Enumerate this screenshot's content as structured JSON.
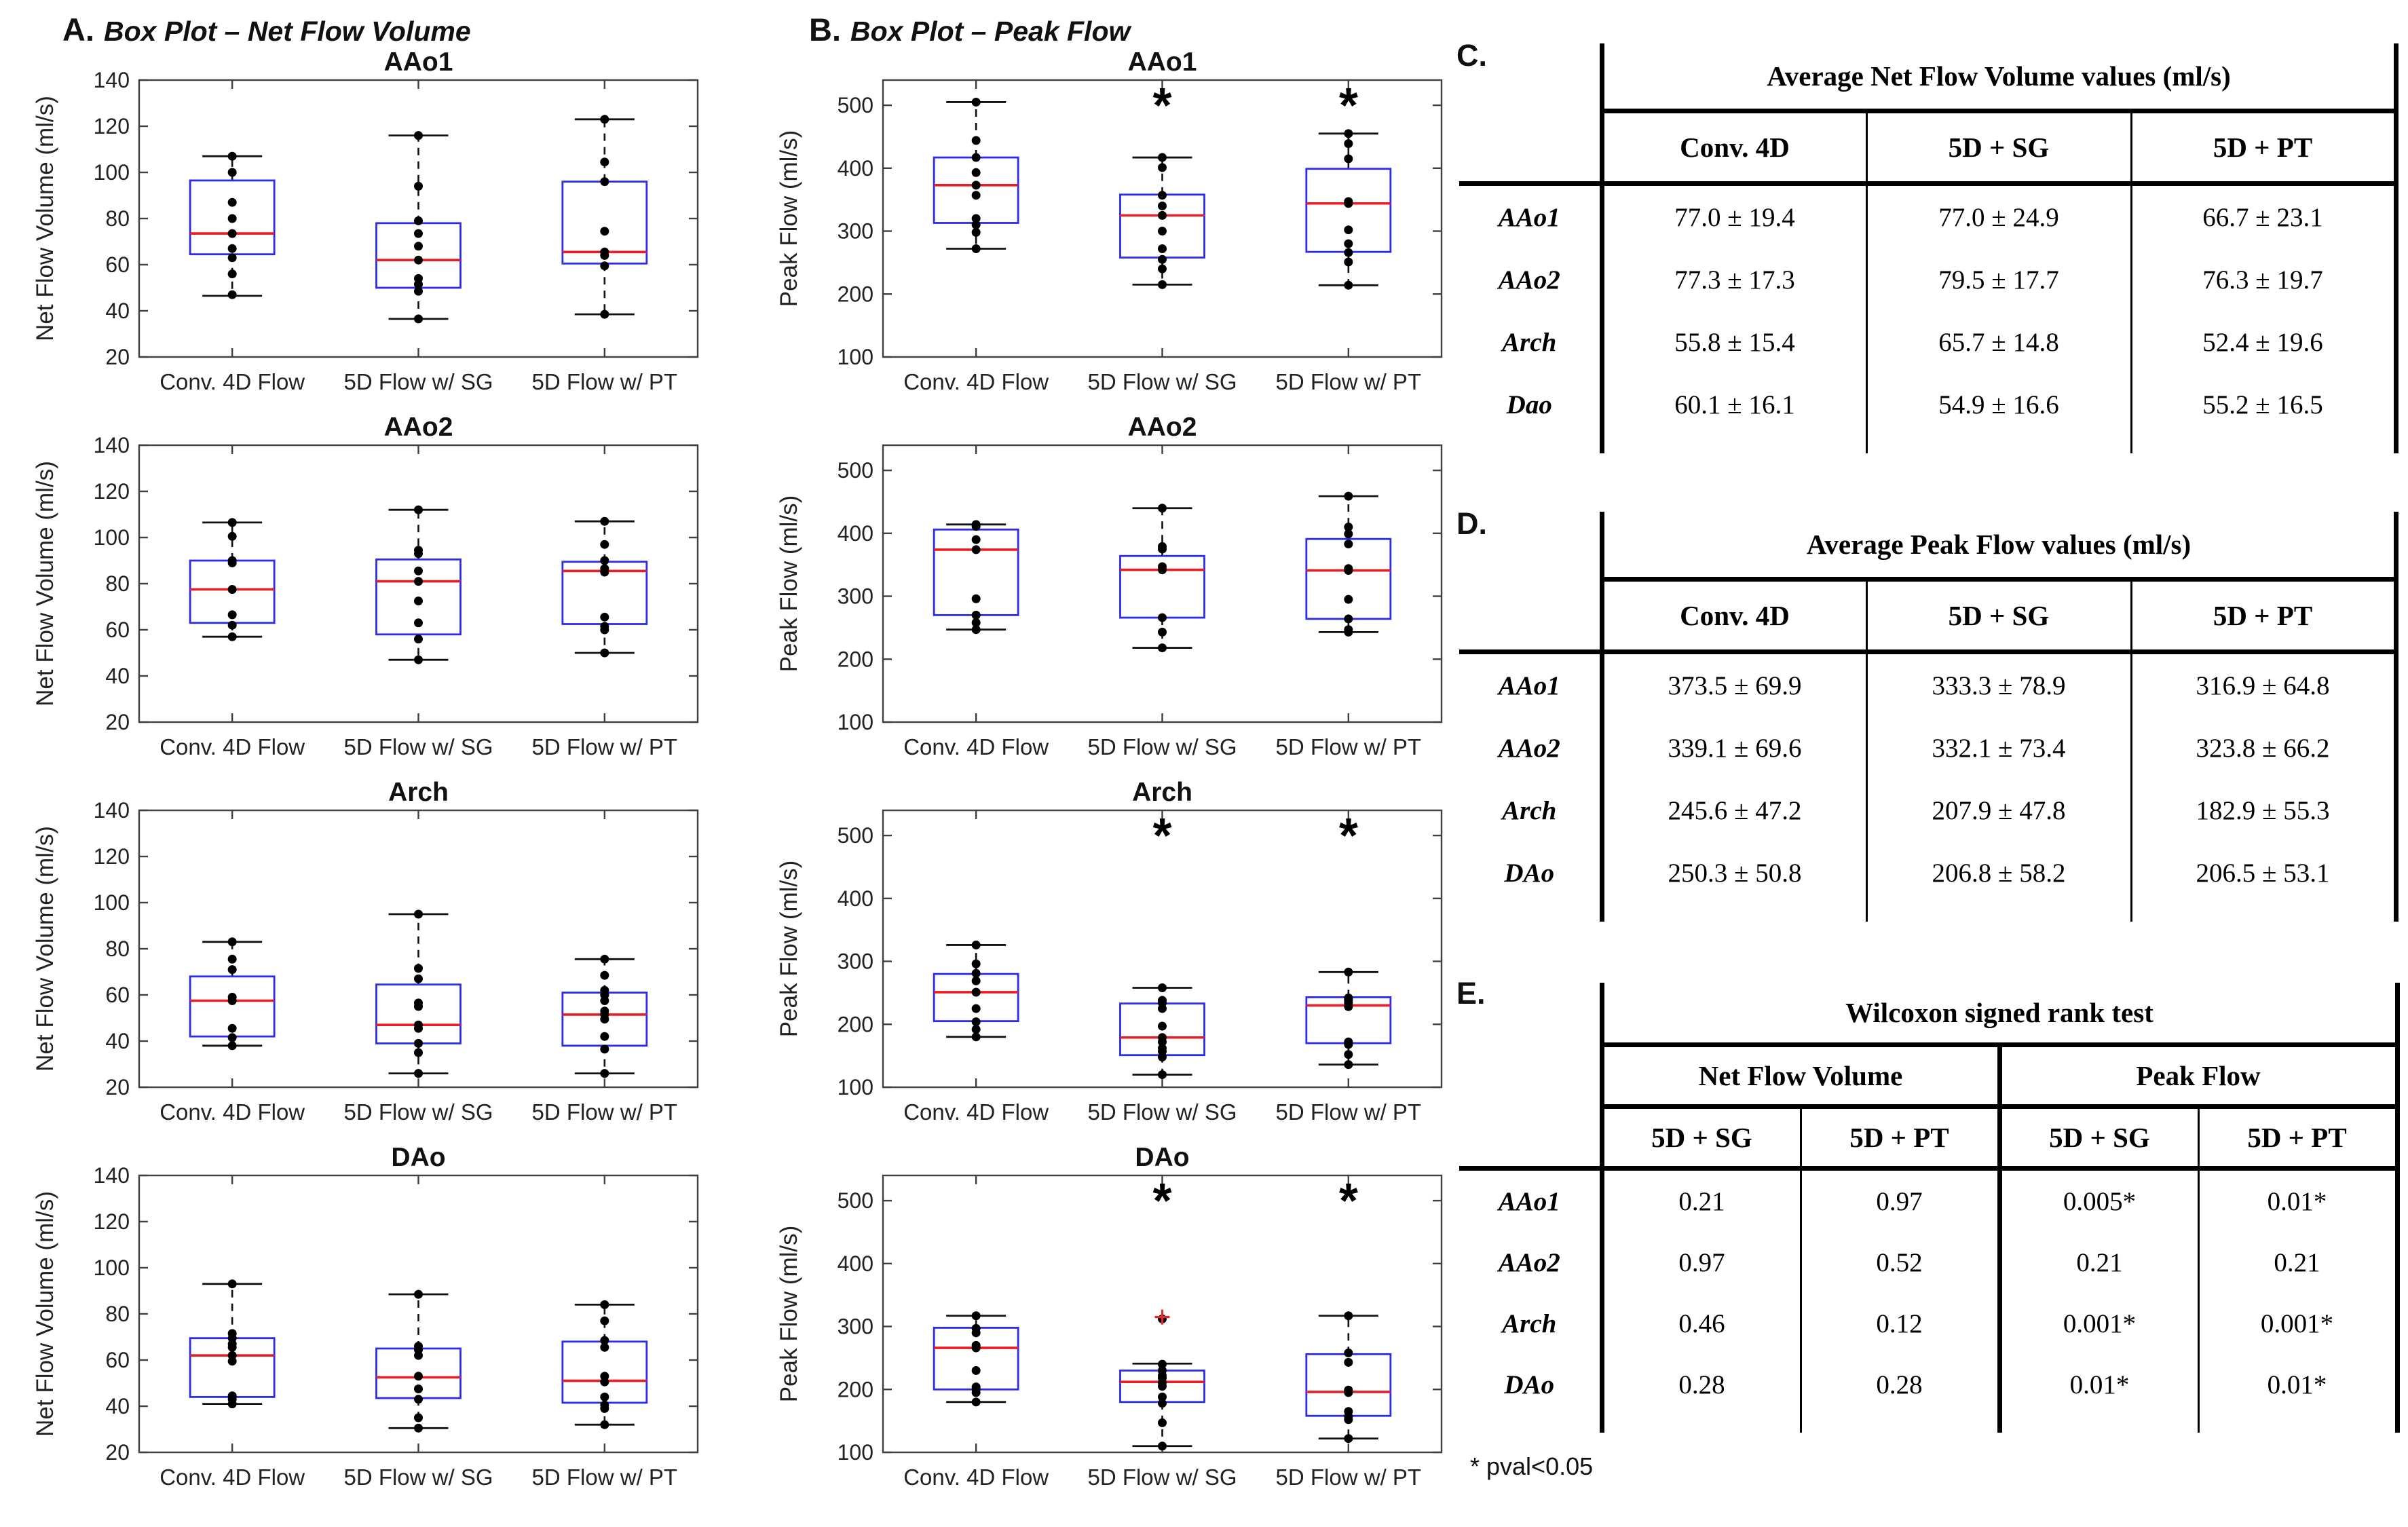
{
  "panels": {
    "A": {
      "prefix": "A.",
      "title": "Box Plot – Net Flow Volume"
    },
    "B": {
      "prefix": "B.",
      "title": "Box Plot – Peak Flow"
    },
    "C": {
      "prefix": "C."
    },
    "D": {
      "prefix": "D."
    },
    "E": {
      "prefix": "E."
    }
  },
  "colors": {
    "box": "#2b2bef",
    "median": "#ec1c24",
    "point": "#000000",
    "outlier": "#e8262a"
  },
  "chart_data": [
    {
      "panel": "A",
      "type": "box",
      "title": "AAo1",
      "ylabel": "Net Flow Volume (ml/s)",
      "ylim": [
        20,
        140
      ],
      "yticks": [
        20,
        40,
        60,
        80,
        100,
        120,
        140
      ],
      "categories": [
        "Conv. 4D Flow",
        "5D Flow w/ SG",
        "5D Flow w/ PT"
      ],
      "boxes": [
        {
          "whislo": 46.5,
          "q1": 64.5,
          "med": 73.5,
          "q3": 96.5,
          "whishi": 107,
          "sig": false,
          "points": [
            47,
            56,
            63,
            67,
            73.5,
            80,
            87,
            100,
            107
          ]
        },
        {
          "whislo": 36.5,
          "q1": 50,
          "med": 62,
          "q3": 78,
          "whishi": 116,
          "sig": false,
          "points": [
            36.5,
            48.5,
            51.5,
            54,
            62,
            68,
            73.5,
            79,
            94,
            116
          ]
        },
        {
          "whislo": 38.5,
          "q1": 60.5,
          "med": 65.5,
          "q3": 96,
          "whishi": 123,
          "sig": false,
          "points": [
            38.5,
            59.5,
            64,
            65.5,
            74.5,
            96,
            104.5,
            123
          ]
        }
      ]
    },
    {
      "panel": "A",
      "type": "box",
      "title": "AAo2",
      "ylabel": "Net Flow Volume (ml/s)",
      "ylim": [
        20,
        140
      ],
      "yticks": [
        20,
        40,
        60,
        80,
        100,
        120,
        140
      ],
      "categories": [
        "Conv. 4D Flow",
        "5D Flow w/ SG",
        "5D Flow w/ PT"
      ],
      "boxes": [
        {
          "whislo": 57,
          "q1": 63,
          "med": 77.5,
          "q3": 90,
          "whishi": 106.5,
          "sig": false,
          "points": [
            57,
            62,
            66.5,
            77.5,
            89,
            90,
            100.5,
            106.5
          ]
        },
        {
          "whislo": 47,
          "q1": 58,
          "med": 81,
          "q3": 90.5,
          "whishi": 112,
          "sig": false,
          "points": [
            47,
            56,
            63,
            72.5,
            81,
            85.5,
            93,
            94.5,
            112
          ]
        },
        {
          "whislo": 50,
          "q1": 62.5,
          "med": 85.5,
          "q3": 89.5,
          "whishi": 107,
          "sig": false,
          "points": [
            50,
            60,
            61.5,
            65.5,
            85,
            86.5,
            90,
            97,
            107
          ]
        }
      ]
    },
    {
      "panel": "A",
      "type": "box",
      "title": "Arch",
      "ylabel": "Net Flow Volume (ml/s)",
      "ylim": [
        20,
        140
      ],
      "yticks": [
        20,
        40,
        60,
        80,
        100,
        120,
        140
      ],
      "categories": [
        "Conv. 4D Flow",
        "5D Flow w/ SG",
        "5D Flow w/ PT"
      ],
      "boxes": [
        {
          "whislo": 38,
          "q1": 42,
          "med": 57.5,
          "q3": 68,
          "whishi": 83,
          "sig": false,
          "points": [
            38,
            41.5,
            45.5,
            57.5,
            59,
            71,
            75.5,
            83
          ]
        },
        {
          "whislo": 26,
          "q1": 39,
          "med": 47,
          "q3": 64.5,
          "whishi": 95,
          "sig": false,
          "points": [
            26,
            35,
            39,
            45.5,
            47,
            55,
            56.5,
            67,
            71.5,
            95
          ]
        },
        {
          "whislo": 26,
          "q1": 38,
          "med": 51.5,
          "q3": 61,
          "whishi": 75.5,
          "sig": false,
          "points": [
            26,
            36.5,
            42,
            49.5,
            51.5,
            53,
            57.5,
            60,
            62,
            68.5,
            75.5
          ]
        }
      ]
    },
    {
      "panel": "A",
      "type": "box",
      "title": "DAo",
      "ylabel": "Net Flow Volume (ml/s)",
      "ylim": [
        20,
        140
      ],
      "yticks": [
        20,
        40,
        60,
        80,
        100,
        120,
        140
      ],
      "categories": [
        "Conv. 4D Flow",
        "5D Flow w/ SG",
        "5D Flow w/ PT"
      ],
      "boxes": [
        {
          "whislo": 41,
          "q1": 44,
          "med": 62,
          "q3": 69.5,
          "whishi": 93,
          "sig": false,
          "points": [
            41,
            43,
            44.5,
            59.5,
            62,
            65.5,
            67,
            69.5,
            71.5,
            93
          ]
        },
        {
          "whislo": 30.5,
          "q1": 43.5,
          "med": 52.5,
          "q3": 65,
          "whishi": 88.5,
          "sig": false,
          "points": [
            30.5,
            35,
            43,
            47.5,
            53,
            62,
            64.5,
            66,
            88.5
          ]
        },
        {
          "whislo": 32,
          "q1": 41.5,
          "med": 51,
          "q3": 68,
          "whishi": 84,
          "sig": false,
          "points": [
            32,
            39,
            40.5,
            44,
            50.5,
            53,
            65.5,
            68.5,
            77,
            84
          ]
        }
      ]
    },
    {
      "panel": "B",
      "type": "box",
      "title": "AAo1",
      "ylabel": "Peak Flow (ml/s)",
      "ylim": [
        100,
        540
      ],
      "yticks": [
        100,
        200,
        300,
        400,
        500
      ],
      "categories": [
        "Conv. 4D Flow",
        "5D Flow w/ SG",
        "5D Flow w/ PT"
      ],
      "boxes": [
        {
          "whislo": 272,
          "q1": 313,
          "med": 373,
          "q3": 417,
          "whishi": 505,
          "sig": false,
          "points": [
            272,
            298,
            310,
            320,
            357,
            373,
            393,
            417,
            444,
            505
          ]
        },
        {
          "whislo": 215,
          "q1": 258,
          "med": 325,
          "q3": 358,
          "whishi": 417,
          "sig": true,
          "points": [
            215,
            240,
            255,
            272,
            300,
            325,
            340,
            357,
            401,
            417
          ]
        },
        {
          "whislo": 214,
          "q1": 267,
          "med": 344,
          "q3": 399,
          "whishi": 455,
          "sig": true,
          "points": [
            214,
            251,
            266,
            280,
            302,
            344,
            347,
            415,
            439,
            455
          ]
        }
      ]
    },
    {
      "panel": "B",
      "type": "box",
      "title": "AAo2",
      "ylabel": "Peak Flow (ml/s)",
      "ylim": [
        100,
        540
      ],
      "yticks": [
        100,
        200,
        300,
        400,
        500
      ],
      "categories": [
        "Conv. 4D Flow",
        "5D Flow w/ SG",
        "5D Flow w/ PT"
      ],
      "boxes": [
        {
          "whislo": 247,
          "q1": 270,
          "med": 374,
          "q3": 406,
          "whishi": 414,
          "sig": false,
          "points": [
            247,
            258,
            270,
            296,
            374,
            390,
            411,
            414
          ]
        },
        {
          "whislo": 218,
          "q1": 266,
          "med": 342,
          "q3": 364,
          "whishi": 440,
          "sig": false,
          "points": [
            218,
            243,
            266,
            342,
            347,
            375,
            379,
            440
          ]
        },
        {
          "whislo": 243,
          "q1": 264,
          "med": 341,
          "q3": 391,
          "whishi": 459,
          "sig": false,
          "points": [
            243,
            247,
            264,
            295,
            341,
            344,
            383,
            399,
            410,
            459
          ]
        }
      ]
    },
    {
      "panel": "B",
      "type": "box",
      "title": "Arch",
      "ylabel": "Peak Flow (ml/s)",
      "ylim": [
        100,
        540
      ],
      "yticks": [
        100,
        200,
        300,
        400,
        500
      ],
      "categories": [
        "Conv. 4D Flow",
        "5D Flow w/ SG",
        "5D Flow w/ PT"
      ],
      "boxes": [
        {
          "whislo": 180,
          "q1": 205,
          "med": 251,
          "q3": 280,
          "whishi": 326,
          "sig": false,
          "points": [
            180,
            192,
            204,
            225,
            251,
            269,
            281,
            296,
            326
          ]
        },
        {
          "whislo": 120,
          "q1": 151,
          "med": 179,
          "q3": 233,
          "whishi": 258,
          "sig": true,
          "points": [
            120,
            148,
            157,
            162,
            172,
            179,
            197,
            225,
            234,
            238,
            258
          ]
        },
        {
          "whislo": 136,
          "q1": 170,
          "med": 230,
          "q3": 243,
          "whishi": 283,
          "sig": true,
          "points": [
            136,
            152,
            168,
            172,
            228,
            234,
            238,
            240,
            242,
            283
          ]
        }
      ]
    },
    {
      "panel": "B",
      "type": "box",
      "title": "DAo",
      "ylabel": "Peak Flow (ml/s)",
      "ylim": [
        100,
        540
      ],
      "yticks": [
        100,
        200,
        300,
        400,
        500
      ],
      "categories": [
        "Conv. 4D Flow",
        "5D Flow w/ SG",
        "5D Flow w/ PT"
      ],
      "boxes": [
        {
          "whislo": 180,
          "q1": 200,
          "med": 266,
          "q3": 298,
          "whishi": 317,
          "sig": false,
          "points": [
            180,
            195,
            200,
            204,
            230,
            266,
            270,
            290,
            297,
            317
          ]
        },
        {
          "whislo": 110,
          "q1": 180,
          "med": 212,
          "q3": 230,
          "whishi": 241,
          "sig": true,
          "points": [
            110,
            147,
            178,
            188,
            205,
            211,
            218,
            222,
            230,
            240,
            312
          ],
          "outliers": [
            315
          ]
        },
        {
          "whislo": 122,
          "q1": 158,
          "med": 196,
          "q3": 256,
          "whishi": 317,
          "sig": true,
          "points": [
            122,
            152,
            157,
            165,
            195,
            199,
            243,
            258,
            317
          ]
        }
      ]
    }
  ],
  "tables": {
    "c": {
      "title": "Average Net Flow Volume values (ml/s)",
      "columns": [
        "Conv. 4D",
        "5D + SG",
        "5D + PT"
      ],
      "rows": [
        {
          "label": "AAo1",
          "values": [
            "77.0 ± 19.4",
            "77.0 ± 24.9",
            "66.7 ± 23.1"
          ]
        },
        {
          "label": "AAo2",
          "values": [
            "77.3 ± 17.3",
            "79.5 ± 17.7",
            "76.3 ± 19.7"
          ]
        },
        {
          "label": "Arch",
          "values": [
            "55.8 ± 15.4",
            "65.7 ± 14.8",
            "52.4 ± 19.6"
          ]
        },
        {
          "label": "Dao",
          "values": [
            "60.1 ± 16.1",
            "54.9 ± 16.6",
            "55.2 ± 16.5"
          ]
        }
      ]
    },
    "d": {
      "title": "Average Peak Flow values (ml/s)",
      "columns": [
        "Conv. 4D",
        "5D + SG",
        "5D + PT"
      ],
      "rows": [
        {
          "label": "AAo1",
          "values": [
            "373.5 ± 69.9",
            "333.3 ± 78.9",
            "316.9 ± 64.8"
          ]
        },
        {
          "label": "AAo2",
          "values": [
            "339.1 ± 69.6",
            "332.1 ± 73.4",
            "323.8 ± 66.2"
          ]
        },
        {
          "label": "Arch",
          "values": [
            "245.6 ± 47.2",
            "207.9 ± 47.8",
            "182.9 ± 55.3"
          ]
        },
        {
          "label": "DAo",
          "values": [
            "250.3 ± 50.8",
            "206.8 ± 58.2",
            "206.5 ± 53.1"
          ]
        }
      ]
    },
    "e": {
      "title": "Wilcoxon signed rank test",
      "groups": [
        "Net Flow Volume",
        "Peak Flow"
      ],
      "subcolumns": [
        "5D + SG",
        "5D + PT",
        "5D + SG",
        "5D + PT"
      ],
      "rows": [
        {
          "label": "AAo1",
          "values": [
            "0.21",
            "0.97",
            "0.005*",
            "0.01*"
          ]
        },
        {
          "label": "AAo2",
          "values": [
            "0.97",
            "0.52",
            "0.21",
            "0.21"
          ]
        },
        {
          "label": "Arch",
          "values": [
            "0.46",
            "0.12",
            "0.001*",
            "0.001*"
          ]
        },
        {
          "label": "DAo",
          "values": [
            "0.28",
            "0.28",
            "0.01*",
            "0.01*"
          ]
        }
      ]
    },
    "footnote": "* pval<0.05"
  }
}
